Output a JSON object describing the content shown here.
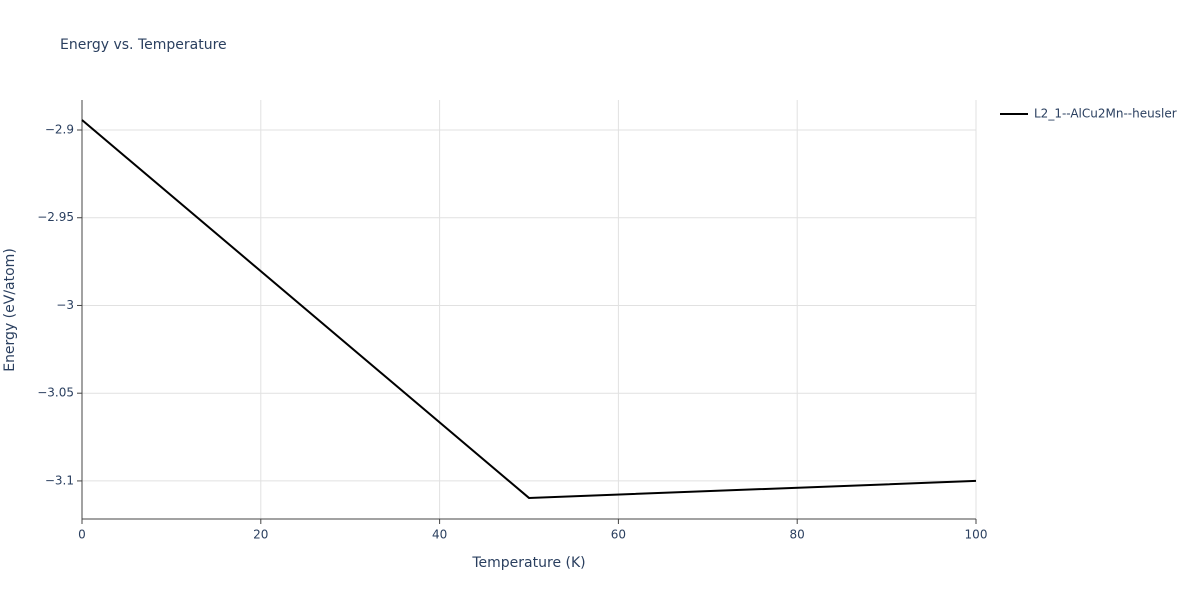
{
  "chart_data": {
    "type": "line",
    "title": "Energy vs. Temperature",
    "x_label": "Temperature (K)",
    "y_label": "Energy (eV/atom)",
    "x": [
      0,
      50,
      100
    ],
    "series": [
      {
        "name": "L2_1--AlCu2Mn--heusler",
        "color": "#000000",
        "values": [
          -2.8943,
          -3.1097,
          -3.1
        ]
      }
    ],
    "xlim": [
      0,
      100
    ],
    "xticks": [
      0,
      20,
      40,
      60,
      80,
      100
    ],
    "ylim": [
      -3.1217,
      -2.8829
    ],
    "yticks": [
      {
        "value": -3.1,
        "label": "−3.1"
      },
      {
        "value": -3.05,
        "label": "−3.05"
      },
      {
        "value": -3,
        "label": "−3"
      },
      {
        "value": -2.95,
        "label": "−2.95"
      },
      {
        "value": -2.9,
        "label": "−2.9"
      }
    ],
    "grid": true,
    "legend": "right"
  }
}
